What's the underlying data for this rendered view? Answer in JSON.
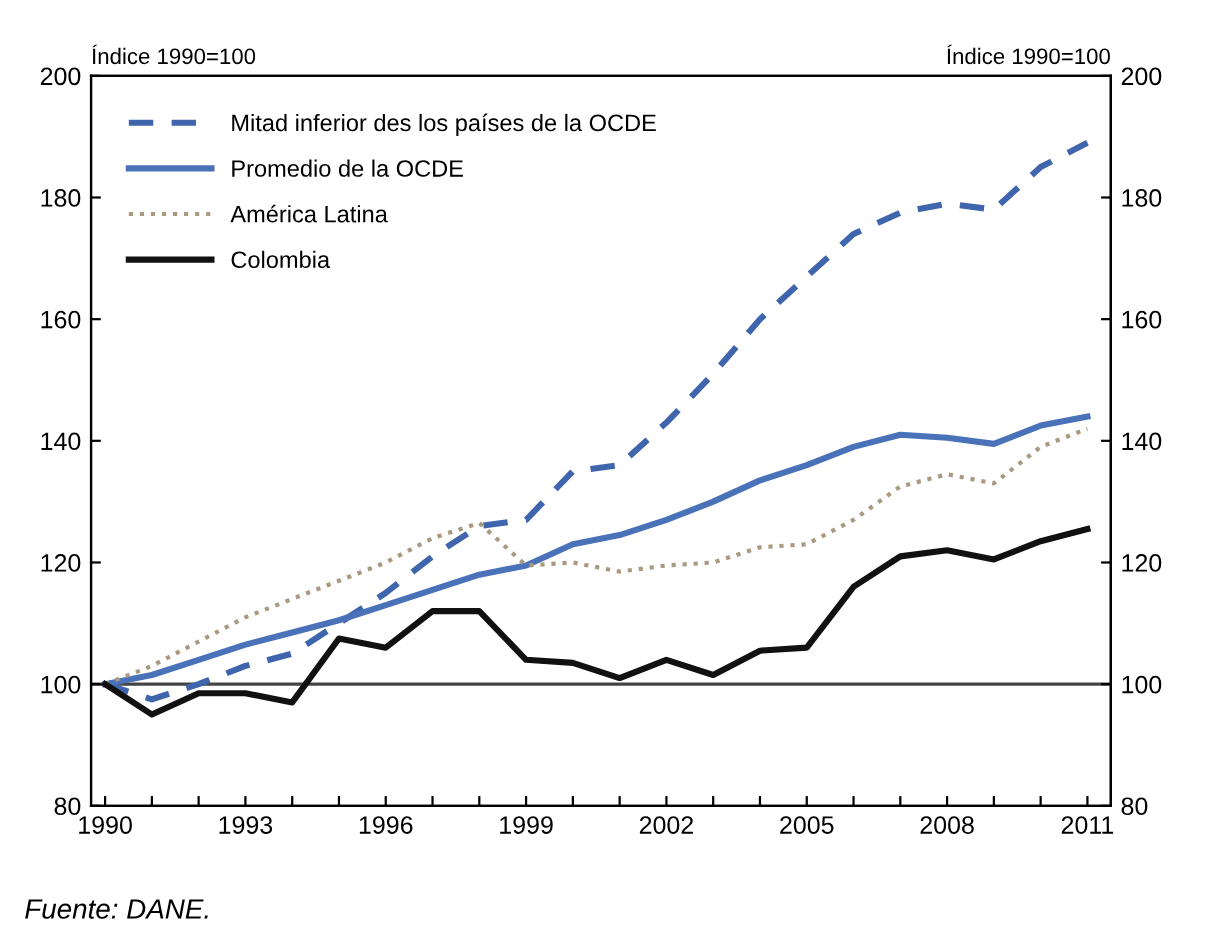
{
  "chart_data": {
    "type": "line",
    "ylabel": "Índice 1990=100",
    "y2label": "Índice 1990=100",
    "annotations": [
      "Fuente: DANE."
    ],
    "x": [
      1990,
      1991,
      1992,
      1993,
      1994,
      1995,
      1996,
      1997,
      1998,
      1999,
      2000,
      2001,
      2002,
      2003,
      2004,
      2005,
      2006,
      2007,
      2008,
      2009,
      2010,
      2011
    ],
    "series": [
      {
        "name": "Mitad inferior des los países de la OCDE",
        "color": "#3f66ad",
        "line_style": "dashed",
        "values": [
          100,
          97.5,
          100,
          103,
          105,
          110,
          115,
          121,
          126,
          127,
          135,
          136,
          143,
          151,
          160,
          167,
          174,
          177.5,
          179,
          178,
          185,
          189
        ]
      },
      {
        "name": "Promedio de la OCDE",
        "color": "#4a72b8",
        "line_style": "solid",
        "values": [
          100,
          101.5,
          104,
          106.5,
          108.5,
          110.5,
          113,
          115.5,
          118,
          119.5,
          123,
          124.5,
          127,
          130,
          133.5,
          136,
          139,
          141,
          140.5,
          139.5,
          142.5,
          144
        ]
      },
      {
        "name": "América Latina",
        "color": "#a89a80",
        "line_style": "dotted",
        "values": [
          100,
          103,
          107,
          111,
          114,
          117,
          120,
          124,
          126.5,
          119.5,
          120,
          118.5,
          119.5,
          120,
          122.5,
          123,
          127,
          132.5,
          134.5,
          133,
          139,
          142
        ]
      },
      {
        "name": "Colombia",
        "color": "#111111",
        "line_style": "solid",
        "values": [
          100,
          95,
          98.5,
          98.5,
          97,
          107.5,
          106,
          112,
          112,
          104,
          103.5,
          101,
          104,
          101.5,
          105.5,
          106,
          116,
          121,
          122,
          120.5,
          123.5,
          125.5
        ]
      }
    ],
    "xlim": [
      1989.7,
      2011.5
    ],
    "xticks": [
      1990,
      {
        "value": 1991,
        "label": null
      },
      {
        "value": 1992,
        "label": null
      },
      1993,
      {
        "value": 1994,
        "label": null
      },
      {
        "value": 1995,
        "label": null
      },
      1996,
      {
        "value": 1997,
        "label": null
      },
      {
        "value": 1998,
        "label": null
      },
      1999,
      {
        "value": 2000,
        "label": null
      },
      {
        "value": 2001,
        "label": null
      },
      2002,
      {
        "value": 2003,
        "label": null
      },
      {
        "value": 2004,
        "label": null
      },
      2005,
      {
        "value": 2006,
        "label": null
      },
      {
        "value": 2007,
        "label": null
      },
      2008,
      {
        "value": 2009,
        "label": null
      },
      {
        "value": 2010,
        "label": null
      },
      2011
    ],
    "ylim": [
      80,
      200
    ],
    "yticks": [
      80,
      100,
      120,
      140,
      160,
      180,
      200
    ],
    "y2lim": [
      80,
      200
    ],
    "y2ticks": [
      80,
      100,
      120,
      140,
      160,
      180,
      200
    ],
    "ref_lines": [
      {
        "axis": "y",
        "value": 100,
        "color": "#444444"
      }
    ],
    "grid": false,
    "legend": "top left"
  }
}
